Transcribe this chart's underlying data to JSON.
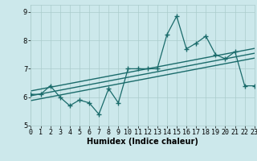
{
  "title": "",
  "xlabel": "Humidex (Indice chaleur)",
  "xlim": [
    0,
    23
  ],
  "ylim": [
    5,
    9.25
  ],
  "yticks": [
    5,
    6,
    7,
    8,
    9
  ],
  "xticks": [
    0,
    1,
    2,
    3,
    4,
    5,
    6,
    7,
    8,
    9,
    10,
    11,
    12,
    13,
    14,
    15,
    16,
    17,
    18,
    19,
    20,
    21,
    22,
    23
  ],
  "bg_color": "#cce8eb",
  "grid_color": "#aacccc",
  "line_color": "#1a6b6b",
  "data_x": [
    0,
    1,
    2,
    3,
    4,
    5,
    6,
    7,
    8,
    9,
    10,
    11,
    12,
    13,
    14,
    15,
    16,
    17,
    18,
    19,
    20,
    21,
    22,
    23
  ],
  "data_y": [
    6.1,
    6.1,
    6.4,
    6.0,
    5.7,
    5.9,
    5.8,
    5.4,
    6.3,
    5.8,
    7.0,
    7.0,
    7.0,
    7.0,
    8.2,
    8.85,
    7.7,
    7.9,
    8.15,
    7.5,
    7.35,
    7.6,
    6.4,
    6.4
  ],
  "reg_lines": [
    {
      "intercept": 6.05,
      "slope": 0.065
    },
    {
      "intercept": 6.22,
      "slope": 0.065
    },
    {
      "intercept": 5.88,
      "slope": 0.065
    }
  ],
  "marker": "+",
  "markersize": 4,
  "linewidth": 0.9,
  "reg_linewidth": 1.0,
  "xlabel_fontsize": 7,
  "tick_fontsize": 6,
  "fig_width": 3.2,
  "fig_height": 2.0,
  "dpi": 100
}
